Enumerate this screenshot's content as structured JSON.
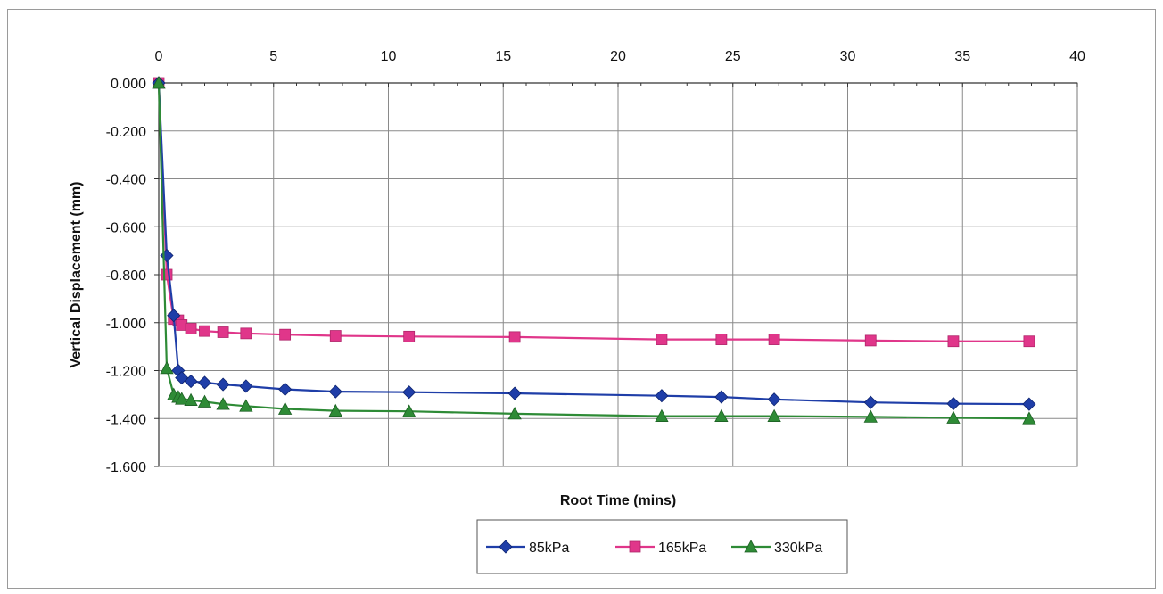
{
  "chart_data": {
    "type": "line",
    "title": "",
    "xlabel": "Root Time (mins)",
    "ylabel": "Vertical Displacement (mm)",
    "xlim": [
      0,
      40
    ],
    "ylim": [
      -1.6,
      0.0
    ],
    "x_ticks": [
      "0",
      "5",
      "10",
      "15",
      "20",
      "25",
      "30",
      "35",
      "40"
    ],
    "y_ticks": [
      "0.000",
      "-0.200",
      "-0.400",
      "-0.600",
      "-0.800",
      "-1.000",
      "-1.200",
      "-1.400",
      "-1.600"
    ],
    "x_axis_position": "top",
    "grid": true,
    "legend_position": "bottom",
    "x": [
      0,
      0.35,
      0.65,
      0.85,
      1.0,
      1.4,
      2.0,
      2.8,
      3.8,
      5.5,
      7.7,
      10.9,
      15.5,
      21.9,
      24.5,
      26.8,
      31.0,
      34.6,
      37.9
    ],
    "series": [
      {
        "name": "85kPa",
        "color": "#1f3ea8",
        "marker": "diamond",
        "values": [
          0.0,
          -0.72,
          -0.97,
          -1.2,
          -1.23,
          -1.245,
          -1.25,
          -1.258,
          -1.265,
          -1.278,
          -1.288,
          -1.29,
          -1.295,
          -1.305,
          -1.31,
          -1.32,
          -1.333,
          -1.338,
          -1.34
        ]
      },
      {
        "name": "165kPa",
        "color": "#e0368a",
        "marker": "square",
        "values": [
          0.0,
          -0.8,
          -0.985,
          -0.99,
          -1.01,
          -1.025,
          -1.035,
          -1.04,
          -1.045,
          -1.05,
          -1.055,
          -1.058,
          -1.06,
          -1.07,
          -1.07,
          -1.07,
          -1.075,
          -1.078,
          -1.078
        ]
      },
      {
        "name": "330kPa",
        "color": "#2e8b36",
        "marker": "triangle",
        "values": [
          0.0,
          -1.19,
          -1.3,
          -1.31,
          -1.318,
          -1.323,
          -1.33,
          -1.34,
          -1.348,
          -1.36,
          -1.368,
          -1.37,
          -1.38,
          -1.39,
          -1.39,
          -1.39,
          -1.393,
          -1.397,
          -1.4
        ]
      }
    ]
  }
}
